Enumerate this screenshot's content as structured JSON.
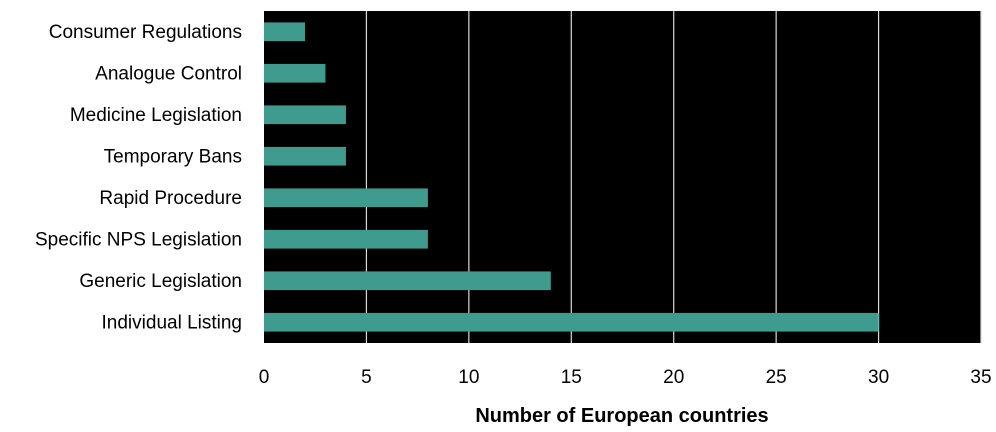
{
  "chart_data": {
    "type": "bar",
    "orientation": "horizontal",
    "categories": [
      "Consumer Regulations",
      "Analogue Control",
      "Medicine Legislation",
      "Temporary Bans",
      "Rapid Procedure",
      "Specific NPS Legislation",
      "Generic Legislation",
      "Individual Listing"
    ],
    "values": [
      2,
      3,
      4,
      4,
      8,
      8,
      14,
      30
    ],
    "xlabel": "Number of European countries",
    "ylabel": "",
    "xlim": [
      0,
      35
    ],
    "xticks": [
      0,
      5,
      10,
      15,
      20,
      25,
      30,
      35
    ],
    "grid": "vertical",
    "colors": {
      "bar": "#3f9b8d",
      "plot_background": "#000000",
      "gridline": "#d9d9d9"
    }
  }
}
